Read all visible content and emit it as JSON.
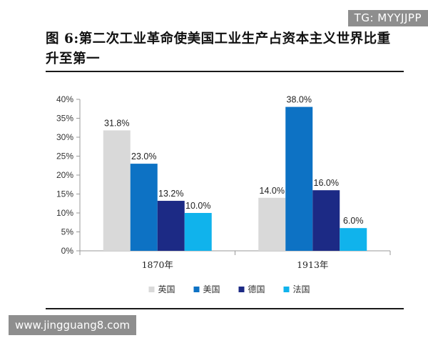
{
  "watermark_tg": "TG: MYYJJPP",
  "watermark_url": "www.jingguang8.com",
  "chart_data": {
    "type": "bar",
    "title": "图 6:第二次工业革命使美国工业生产占资本主义世界比重升至第一",
    "categories": [
      "1870年",
      "1913年"
    ],
    "series": [
      {
        "name": "英国",
        "values": [
          31.8,
          14.0
        ],
        "color": "#d9d9d9"
      },
      {
        "name": "美国",
        "values": [
          23.0,
          38.0
        ],
        "color": "#0d72c4"
      },
      {
        "name": "德国",
        "values": [
          13.2,
          16.0
        ],
        "color": "#1c2a85"
      },
      {
        "name": "法国",
        "values": [
          10.0,
          6.0
        ],
        "color": "#10b3ec"
      }
    ],
    "data_labels": [
      [
        "31.8%",
        "14.0%"
      ],
      [
        "23.0%",
        "38.0%"
      ],
      [
        "13.2%",
        "16.0%"
      ],
      [
        "10.0%",
        "6.0%"
      ]
    ],
    "yticks": [
      "0%",
      "5%",
      "10%",
      "15%",
      "20%",
      "25%",
      "30%",
      "35%",
      "40%"
    ],
    "ylim": [
      0,
      40
    ],
    "xlabel": "",
    "ylabel": "",
    "legend_position": "bottom",
    "grid": false
  }
}
